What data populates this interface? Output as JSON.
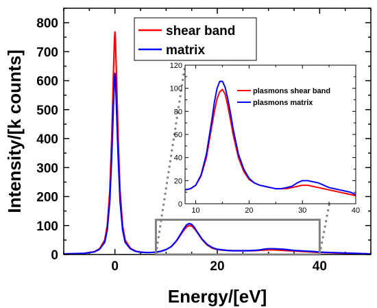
{
  "chart_data": [
    {
      "type": "line",
      "role": "main",
      "xlabel": "Energy/[eV]",
      "ylabel": "Intensity/[k counts]",
      "xlim": [
        -10,
        50
      ],
      "ylim": [
        0,
        850
      ],
      "x_ticks": [
        "0",
        "20",
        "40"
      ],
      "y_ticks": [
        "0",
        "100",
        "200",
        "300",
        "400",
        "500",
        "600",
        "700",
        "800"
      ],
      "grid": false,
      "legend_position": "top-center",
      "series": [
        {
          "name": "shear band",
          "color": "#ff0000",
          "x": [
            -10,
            -6,
            -4,
            -3,
            -2,
            -1.5,
            -1,
            -0.6,
            -0.3,
            -0.1,
            0,
            0.1,
            0.3,
            0.6,
            1,
            1.5,
            2,
            3,
            4,
            5,
            6,
            7,
            8,
            9,
            10,
            11,
            12,
            13,
            13.5,
            14,
            14.5,
            15,
            15.5,
            16,
            16.5,
            17,
            18,
            19,
            20,
            21,
            22,
            23,
            24,
            25,
            26,
            27,
            28,
            29,
            30,
            31,
            32,
            33,
            34,
            35,
            36,
            37,
            38,
            39,
            40,
            42,
            45,
            50
          ],
          "y": [
            2,
            4,
            10,
            20,
            50,
            100,
            220,
            420,
            620,
            740,
            768,
            740,
            620,
            420,
            220,
            100,
            50,
            22,
            12,
            8,
            7,
            7,
            8,
            11,
            17,
            27,
            46,
            72,
            85,
            95,
            100,
            98,
            90,
            78,
            65,
            52,
            33,
            22,
            17,
            15,
            14,
            13,
            13,
            13,
            13,
            13,
            14,
            15,
            16,
            16,
            15,
            14,
            13,
            12,
            11,
            10,
            9,
            8,
            7,
            6,
            4,
            2
          ]
        },
        {
          "name": "matrix",
          "color": "#0000ff",
          "x": [
            -10,
            -6,
            -4,
            -3,
            -2,
            -1.5,
            -1,
            -0.6,
            -0.3,
            -0.1,
            0,
            0.1,
            0.3,
            0.6,
            1,
            1.5,
            2,
            3,
            4,
            5,
            6,
            7,
            8,
            9,
            10,
            11,
            12,
            13,
            13.5,
            14,
            14.5,
            15,
            15.5,
            16,
            16.5,
            17,
            18,
            19,
            20,
            21,
            22,
            23,
            24,
            25,
            26,
            27,
            28,
            29,
            30,
            31,
            32,
            33,
            34,
            35,
            36,
            37,
            38,
            39,
            40,
            42,
            45,
            50
          ],
          "y": [
            2,
            4,
            9,
            18,
            42,
            85,
            185,
            350,
            510,
            605,
            625,
            605,
            510,
            350,
            185,
            85,
            42,
            20,
            11,
            8,
            7,
            7,
            8,
            11,
            17,
            27,
            47,
            75,
            90,
            102,
            107,
            104,
            94,
            80,
            67,
            54,
            35,
            24,
            18,
            16,
            14,
            13,
            13,
            13,
            13,
            14,
            15,
            18,
            20,
            20,
            19,
            18,
            16,
            14,
            13,
            12,
            11,
            10,
            8,
            7,
            5,
            2
          ]
        }
      ]
    },
    {
      "type": "line",
      "role": "inset",
      "xlim": [
        8,
        40
      ],
      "ylim": [
        0,
        120
      ],
      "x_ticks": [
        "10",
        "20",
        "30",
        "40"
      ],
      "y_ticks": [
        "0",
        "20",
        "40",
        "60",
        "80",
        "100",
        "120"
      ],
      "grid": false,
      "legend_position": "top-right",
      "series": [
        {
          "name": "plasmons shear band",
          "color": "#ff0000",
          "x": [
            8,
            9,
            10,
            11,
            12,
            13,
            13.5,
            14,
            14.5,
            15,
            15.5,
            16,
            16.5,
            17,
            18,
            19,
            20,
            21,
            22,
            23,
            24,
            25,
            26,
            27,
            28,
            29,
            30,
            31,
            32,
            33,
            34,
            35,
            36,
            37,
            38,
            39,
            40
          ],
          "y": [
            12,
            13,
            16,
            24,
            40,
            67,
            80,
            91,
            97,
            99,
            95,
            85,
            73,
            60,
            40,
            28,
            21,
            18,
            16,
            15,
            14,
            13,
            13,
            13,
            14,
            15,
            16,
            16,
            15,
            14,
            13,
            12,
            11,
            10,
            9,
            8,
            7
          ]
        },
        {
          "name": "plasmons matrix",
          "color": "#0000ff",
          "x": [
            8,
            9,
            10,
            11,
            12,
            13,
            13.5,
            14,
            14.5,
            15,
            15.5,
            16,
            16.5,
            17,
            18,
            19,
            20,
            21,
            22,
            23,
            24,
            25,
            26,
            27,
            28,
            29,
            30,
            31,
            32,
            33,
            34,
            35,
            36,
            37,
            38,
            39,
            40
          ],
          "y": [
            12,
            13,
            16,
            25,
            43,
            72,
            88,
            100,
            106,
            106,
            101,
            91,
            79,
            65,
            43,
            30,
            22,
            18,
            16,
            15,
            14,
            13,
            13,
            14,
            15,
            18,
            20,
            20,
            19,
            18,
            16,
            14,
            13,
            12,
            11,
            10,
            8
          ]
        }
      ]
    }
  ],
  "colors": {
    "zoom_box": "#808080",
    "connector": "#808080"
  }
}
